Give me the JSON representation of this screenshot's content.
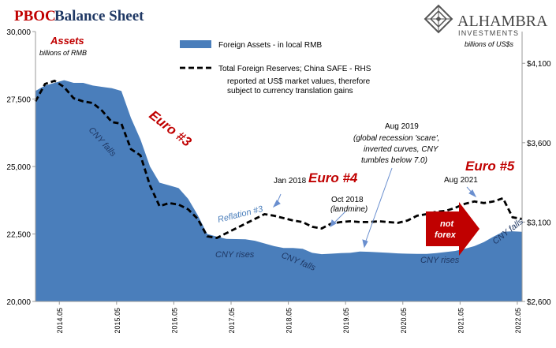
{
  "header": {
    "title_pboc": "PBOC",
    "title_rest": "Balance Sheet",
    "brand_name": "ALHAMBRA",
    "brand_sub": "INVESTMENTS",
    "accent_red": "#c00000",
    "accent_navy": "#1f3864"
  },
  "chart_data": {
    "type": "area",
    "left_axis": {
      "label": "Assets",
      "unit": "billions of RMB",
      "ylim": [
        20000,
        30000
      ],
      "ticks": [
        "20,000",
        "22,500",
        "25,000",
        "27,500",
        "30,000"
      ],
      "tick_values": [
        20000,
        22500,
        25000,
        27500,
        30000
      ]
    },
    "right_axis": {
      "unit": "billions of US$s",
      "ylim": [
        2600,
        4300
      ],
      "ticks": [
        "$2,600",
        "$3,100",
        "$3,600",
        "$4,100"
      ],
      "tick_values": [
        2600,
        3100,
        3600,
        4100
      ]
    },
    "x_ticks": [
      "2014.05",
      "2015.05",
      "2016.05",
      "2017.05",
      "2018.05",
      "2019.05",
      "2020.05",
      "2021.05",
      "2022.05"
    ],
    "x_range": [
      "2013.12",
      "2022.06"
    ],
    "series": [
      {
        "name": "Foreign Assets - in local RMB",
        "axis": "left",
        "color": "#4a7ebb",
        "x": [
          "2013.12",
          "2014.02",
          "2014.04",
          "2014.06",
          "2014.08",
          "2014.10",
          "2014.12",
          "2015.02",
          "2015.04",
          "2015.06",
          "2015.08",
          "2015.10",
          "2015.12",
          "2016.02",
          "2016.04",
          "2016.06",
          "2016.08",
          "2016.10",
          "2016.12",
          "2017.02",
          "2017.04",
          "2017.06",
          "2017.08",
          "2017.10",
          "2017.12",
          "2018.02",
          "2018.04",
          "2018.06",
          "2018.08",
          "2018.10",
          "2018.12",
          "2019.02",
          "2019.04",
          "2019.06",
          "2019.08",
          "2019.10",
          "2019.12",
          "2020.02",
          "2020.04",
          "2020.06",
          "2020.08",
          "2020.10",
          "2020.12",
          "2021.02",
          "2021.04",
          "2021.06",
          "2021.08",
          "2021.10",
          "2021.12",
          "2022.02",
          "2022.04",
          "2022.06"
        ],
        "values": [
          27800,
          28000,
          28100,
          28200,
          28100,
          28100,
          28000,
          27950,
          27900,
          27800,
          26800,
          26000,
          25000,
          24400,
          24300,
          24200,
          23800,
          23200,
          22500,
          22400,
          22320,
          22310,
          22300,
          22250,
          22150,
          22050,
          21980,
          21980,
          21950,
          21800,
          21750,
          21770,
          21790,
          21800,
          21850,
          21840,
          21820,
          21800,
          21780,
          21770,
          21760,
          21760,
          21790,
          21830,
          21870,
          21950,
          22050,
          22200,
          22400,
          22580,
          22600,
          22580
        ]
      },
      {
        "name": "Total Foreign Reserves; China SAFE - RHS",
        "axis": "right",
        "color": "#000000",
        "x": [
          "2013.12",
          "2014.02",
          "2014.04",
          "2014.06",
          "2014.08",
          "2014.10",
          "2014.12",
          "2015.02",
          "2015.04",
          "2015.06",
          "2015.08",
          "2015.10",
          "2015.12",
          "2016.02",
          "2016.04",
          "2016.06",
          "2016.08",
          "2016.10",
          "2016.12",
          "2017.02",
          "2017.04",
          "2017.06",
          "2017.08",
          "2017.10",
          "2017.12",
          "2018.02",
          "2018.04",
          "2018.06",
          "2018.08",
          "2018.10",
          "2018.12",
          "2019.02",
          "2019.04",
          "2019.06",
          "2019.08",
          "2019.10",
          "2019.12",
          "2020.02",
          "2020.04",
          "2020.06",
          "2020.08",
          "2020.10",
          "2020.12",
          "2021.02",
          "2021.04",
          "2021.06",
          "2021.08",
          "2021.10",
          "2021.12",
          "2022.02",
          "2022.04",
          "2022.06"
        ],
        "values": [
          3860,
          3970,
          3990,
          3950,
          3880,
          3860,
          3850,
          3800,
          3730,
          3720,
          3560,
          3520,
          3330,
          3200,
          3220,
          3210,
          3180,
          3120,
          3010,
          3000,
          3030,
          3060,
          3090,
          3120,
          3150,
          3140,
          3125,
          3110,
          3100,
          3070,
          3060,
          3090,
          3100,
          3105,
          3100,
          3100,
          3105,
          3100,
          3095,
          3110,
          3140,
          3150,
          3165,
          3170,
          3190,
          3215,
          3230,
          3220,
          3230,
          3250,
          3130,
          3120
        ]
      }
    ],
    "legend": {
      "position": "top-center",
      "items": [
        {
          "label": "Foreign Assets - in local RMB"
        },
        {
          "label": "Total Foreign Reserves; China SAFE - RHS"
        },
        {
          "label": "reported at US$ market values, therefore"
        },
        {
          "label": "subject to currency translation gains"
        }
      ]
    },
    "annotations": {
      "euro3": "Euro #3",
      "euro4": "Euro #4",
      "euro5": "Euro #5",
      "cny_falls_1": "CNY falls",
      "reflation3": "Reflation #3",
      "cny_rises_1": "CNY rises",
      "cny_falls_2": "CNY falls",
      "cny_rises_2": "CNY rises",
      "cny_falls_3": "CNY falls",
      "jan2018": "Jan 2018",
      "oct2018_1": "Oct 2018",
      "oct2018_2": "(landmine)",
      "aug2019_1": "Aug 2019",
      "aug2019_2": "(global recession 'scare',",
      "aug2019_3": "inverted curves, CNY",
      "aug2019_4": "tumbles below 7.0)",
      "aug2021": "Aug 2021",
      "not_forex_1": "not",
      "not_forex_2": "forex"
    }
  }
}
